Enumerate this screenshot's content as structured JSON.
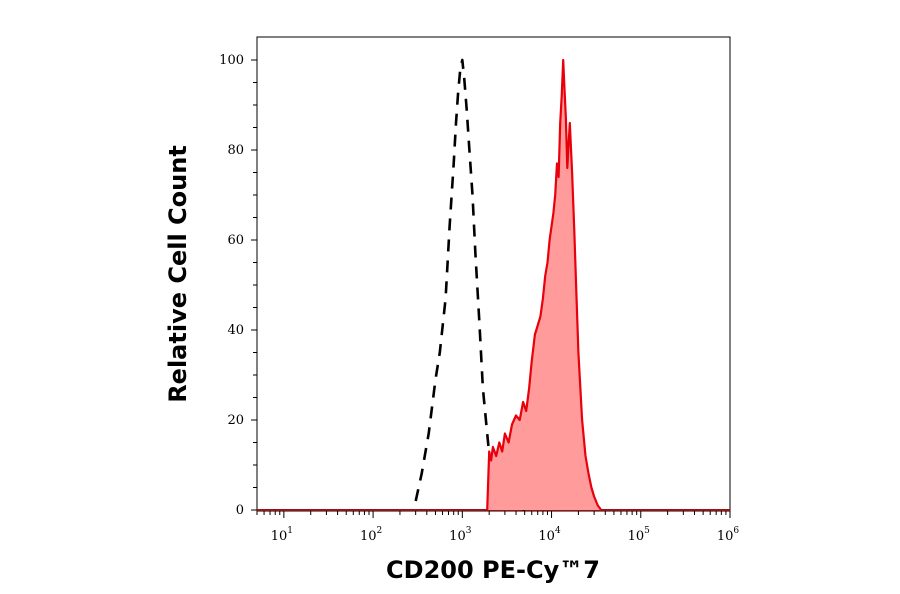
{
  "chart_data": {
    "type": "area",
    "xlabel": "CD200 PE-Cy™7",
    "ylabel": "Relative Cell Count",
    "x_scale": "log",
    "xlim": [
      5,
      1000000
    ],
    "ylim": [
      0,
      103
    ],
    "x_tick_labels": [
      {
        "value": 10,
        "base": "10",
        "exp": "1"
      },
      {
        "value": 100,
        "base": "10",
        "exp": "2"
      },
      {
        "value": 1000,
        "base": "10",
        "exp": "3"
      },
      {
        "value": 10000,
        "base": "10",
        "exp": "4"
      },
      {
        "value": 100000,
        "base": "10",
        "exp": "5"
      },
      {
        "value": 1000000,
        "base": "10",
        "exp": "6"
      }
    ],
    "y_tick_labels": [
      "0",
      "20",
      "40",
      "60",
      "80",
      "100"
    ],
    "y_ticks": [
      0,
      20,
      40,
      60,
      80,
      100
    ],
    "series": [
      {
        "style": "dashed",
        "color": "#000000",
        "x": [
          300,
          350,
          420,
          500,
          560,
          650,
          720,
          800,
          850,
          900,
          950,
          1000,
          1050,
          1120,
          1200,
          1300,
          1400,
          1550,
          1700,
          1900,
          2100,
          2400,
          2800,
          3300,
          4000,
          5000
        ],
        "y": [
          2,
          8,
          17,
          29,
          35,
          47,
          63,
          77,
          86,
          93,
          98,
          100,
          96,
          89,
          80,
          70,
          57,
          42,
          27,
          17,
          8,
          3,
          2,
          1,
          1,
          0
        ]
      },
      {
        "style": "filled",
        "color": "#e8000b",
        "fill": "#ff9b9b",
        "x": [
          1900,
          2000,
          2100,
          2200,
          2400,
          2600,
          2800,
          3000,
          3300,
          3600,
          4000,
          4400,
          4800,
          5200,
          5600,
          6000,
          6500,
          7000,
          7500,
          8000,
          8500,
          9000,
          9500,
          10000,
          10500,
          11000,
          11500,
          12000,
          12500,
          13000,
          13500,
          14000,
          14500,
          15000,
          16000,
          17000,
          18000,
          19000,
          20000,
          22000,
          24000,
          26000,
          28000,
          30000,
          33000,
          36000
        ],
        "y": [
          0,
          13,
          11,
          14,
          12,
          15,
          13,
          17,
          15,
          19,
          21,
          20,
          24,
          22,
          27,
          33,
          39,
          41,
          43,
          47,
          52,
          55,
          60,
          63,
          66,
          70,
          77,
          74,
          86,
          92,
          100,
          93,
          87,
          76,
          86,
          75,
          62,
          48,
          35,
          20,
          12,
          8,
          5,
          3,
          1,
          0
        ]
      }
    ]
  }
}
